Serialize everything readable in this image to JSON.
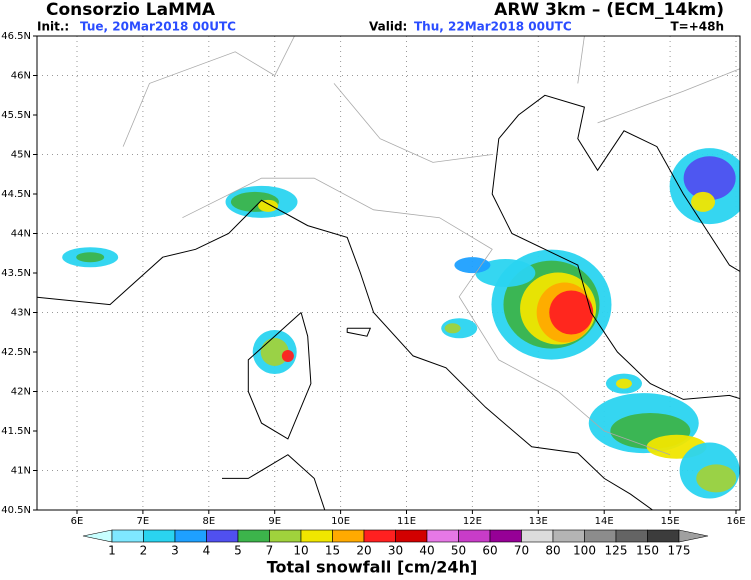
{
  "header": {
    "left_title": "Consorzio LaMMA",
    "right_title": "ARW 3km – (ECM_14km)",
    "init_label": "Init.:",
    "init_value": "Tue, 20Mar2018 00UTC",
    "valid_label": "Valid:",
    "valid_value": "Thu, 22Mar2018 00UTC",
    "lead_time": "T=+48h"
  },
  "map": {
    "lon_labels": [
      "6E",
      "7E",
      "8E",
      "9E",
      "10E",
      "11E",
      "12E",
      "13E",
      "14E",
      "15E",
      "16E"
    ],
    "lat_labels": [
      "46.5N",
      "46N",
      "45.5N",
      "45N",
      "44.5N",
      "44N",
      "43.5N",
      "43N",
      "42.5N",
      "42N",
      "41.5N",
      "41N",
      "40.5N"
    ]
  },
  "colorbar": {
    "labels": [
      "1",
      "2",
      "3",
      "4",
      "5",
      "7",
      "10",
      "15",
      "20",
      "30",
      "40",
      "50",
      "60",
      "70",
      "80",
      "100",
      "125",
      "150",
      "175"
    ],
    "colors": [
      "#c8ffff",
      "#7fe8ff",
      "#2ad4f0",
      "#1ea0ff",
      "#5050f0",
      "#3cb44b",
      "#a0d23c",
      "#f0e600",
      "#ffaa00",
      "#ff2020",
      "#d20000",
      "#e678e6",
      "#c83cc8",
      "#960096",
      "#dcdcdc",
      "#b4b4b4",
      "#8c8c8c",
      "#646464",
      "#3c3c3c",
      "#a0a0a0"
    ],
    "title": "Total snowfall [cm/24h]"
  }
}
